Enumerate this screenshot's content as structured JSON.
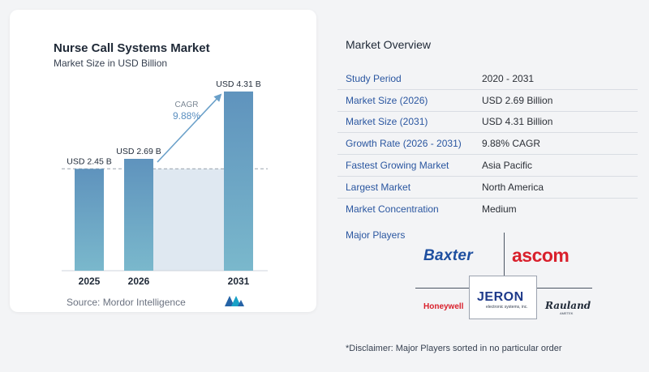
{
  "header": {
    "title": "Nurse Call Systems Market",
    "subtitle": "Market Size in USD Billion"
  },
  "chart_data": {
    "type": "bar",
    "title": "Nurse Call Systems Market",
    "subtitle": "Market Size in USD Billion",
    "categories": [
      "2025",
      "2026",
      "2031"
    ],
    "values": [
      2.45,
      2.69,
      4.31
    ],
    "data_labels": [
      "USD 2.45 B",
      "USD 2.69 B",
      "USD 4.31 B"
    ],
    "ylim": [
      0,
      4.6
    ],
    "annotation": {
      "label": "CAGR",
      "value": "9.88%"
    },
    "colors": {
      "bar_top": "#5f93bd",
      "bar_bottom": "#7ab8cc",
      "band": "#dfe8f1",
      "arrow": "#6aa0c9"
    }
  },
  "source": "Source:  Mordor Intelligence",
  "overview": {
    "title": "Market Overview",
    "rows": [
      {
        "label": "Study Period",
        "value": "2020 - 2031"
      },
      {
        "label": "Market Size (2026)",
        "value": "USD 2.69 Billion"
      },
      {
        "label": "Market Size (2031)",
        "value": "USD 4.31 Billion"
      },
      {
        "label": "Growth Rate (2026 - 2031)",
        "value": "9.88% CAGR"
      },
      {
        "label": "Fastest Growing Market",
        "value": "Asia Pacific"
      },
      {
        "label": "Largest Market",
        "value": "North America"
      },
      {
        "label": "Market Concentration",
        "value": "Medium"
      }
    ]
  },
  "players": {
    "label": "Major Players",
    "baxter": "Baxter",
    "ascom": "ascom",
    "honeywell": "Honeywell",
    "jeron": "JERON",
    "jeron_sub": "electronic systems, inc.",
    "rauland": "Rauland",
    "rauland_sub": "AMETEK"
  },
  "disclaimer": "*Disclaimer: Major Players sorted in no particular order"
}
